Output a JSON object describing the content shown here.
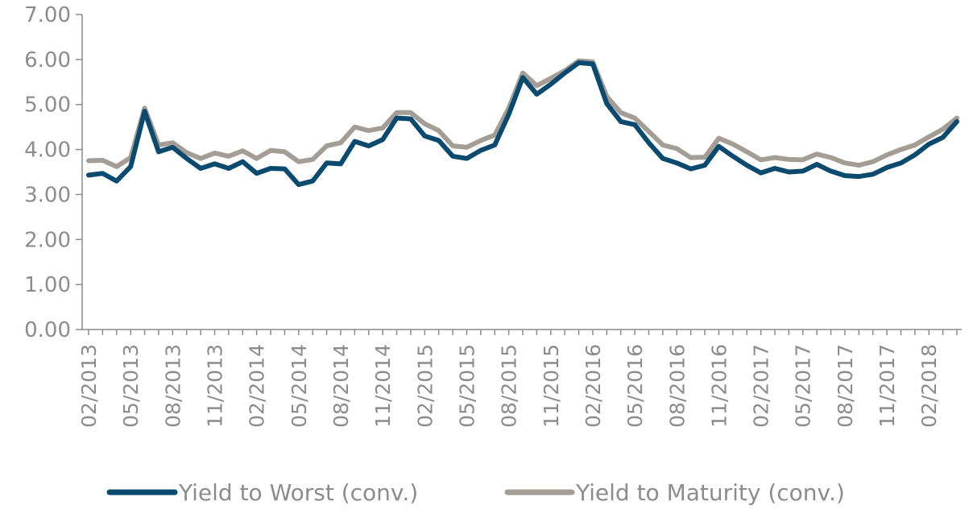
{
  "chart_data": {
    "type": "line",
    "title": "",
    "xlabel": "",
    "ylabel": "",
    "ylim": [
      0,
      7
    ],
    "yticks": [
      "0.00",
      "1.00",
      "2.00",
      "3.00",
      "4.00",
      "5.00",
      "6.00",
      "7.00"
    ],
    "x_tick_labels": [
      "02/2013",
      "05/2013",
      "08/2013",
      "11/2013",
      "02/2014",
      "05/2014",
      "08/2014",
      "11/2014",
      "02/2015",
      "05/2015",
      "08/2015",
      "11/2015",
      "02/2016",
      "05/2016",
      "08/2016",
      "11/2016",
      "02/2017",
      "05/2017",
      "08/2017",
      "11/2017",
      "02/2018"
    ],
    "x": [
      "02/2013",
      "03/2013",
      "04/2013",
      "05/2013",
      "06/2013",
      "07/2013",
      "08/2013",
      "09/2013",
      "10/2013",
      "11/2013",
      "12/2013",
      "01/2014",
      "02/2014",
      "03/2014",
      "04/2014",
      "05/2014",
      "06/2014",
      "07/2014",
      "08/2014",
      "09/2014",
      "10/2014",
      "11/2014",
      "12/2014",
      "01/2015",
      "02/2015",
      "03/2015",
      "04/2015",
      "05/2015",
      "06/2015",
      "07/2015",
      "08/2015",
      "09/2015",
      "10/2015",
      "11/2015",
      "12/2015",
      "01/2016",
      "02/2016",
      "03/2016",
      "04/2016",
      "05/2016",
      "06/2016",
      "07/2016",
      "08/2016",
      "09/2016",
      "10/2016",
      "11/2016",
      "12/2016",
      "01/2017",
      "02/2017",
      "03/2017",
      "04/2017",
      "05/2017",
      "06/2017",
      "07/2017",
      "08/2017",
      "09/2017",
      "10/2017",
      "11/2017",
      "12/2017",
      "01/2018",
      "02/2018",
      "03/2018",
      "04/2018"
    ],
    "series": [
      {
        "name": "Yield to Worst (conv.)",
        "color": "#0b4a6f",
        "values": [
          3.43,
          3.47,
          3.3,
          3.62,
          4.85,
          3.95,
          4.05,
          3.8,
          3.58,
          3.68,
          3.58,
          3.73,
          3.47,
          3.58,
          3.57,
          3.22,
          3.3,
          3.7,
          3.68,
          4.18,
          4.08,
          4.22,
          4.7,
          4.68,
          4.3,
          4.2,
          3.85,
          3.8,
          3.98,
          4.1,
          4.78,
          5.6,
          5.23,
          5.45,
          5.7,
          5.93,
          5.9,
          5.02,
          4.62,
          4.55,
          4.15,
          3.8,
          3.7,
          3.57,
          3.65,
          4.07,
          3.85,
          3.65,
          3.48,
          3.58,
          3.5,
          3.52,
          3.67,
          3.52,
          3.42,
          3.4,
          3.45,
          3.6,
          3.7,
          3.88,
          4.12,
          4.27,
          4.62
        ]
      },
      {
        "name": "Yield to Maturity (conv.)",
        "color": "#a39d96",
        "values": [
          3.75,
          3.76,
          3.62,
          3.82,
          4.92,
          4.1,
          4.15,
          3.93,
          3.8,
          3.92,
          3.85,
          3.97,
          3.8,
          3.98,
          3.95,
          3.73,
          3.78,
          4.08,
          4.15,
          4.5,
          4.42,
          4.48,
          4.82,
          4.82,
          4.57,
          4.42,
          4.08,
          4.05,
          4.2,
          4.32,
          4.92,
          5.7,
          5.42,
          5.58,
          5.75,
          5.97,
          5.95,
          5.18,
          4.82,
          4.7,
          4.4,
          4.1,
          4.02,
          3.82,
          3.83,
          4.25,
          4.12,
          3.95,
          3.77,
          3.82,
          3.78,
          3.77,
          3.9,
          3.82,
          3.7,
          3.65,
          3.73,
          3.88,
          4.0,
          4.1,
          4.28,
          4.45,
          4.7
        ]
      }
    ],
    "legend_position": "bottom",
    "grid": false
  }
}
